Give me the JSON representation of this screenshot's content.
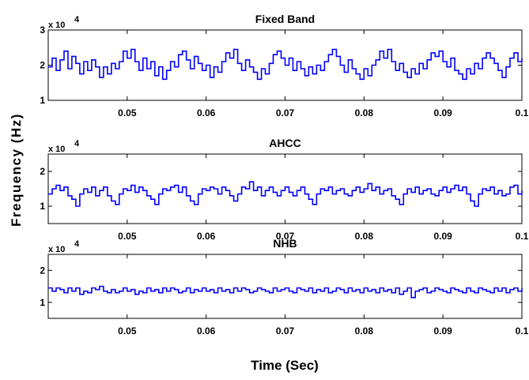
{
  "figure": {
    "xlabel": "Time (Sec)",
    "ylabel": "Frequency (Hz)",
    "line_color": "#0000ff"
  },
  "chart_data": [
    {
      "type": "line",
      "title": "Fixed Band",
      "exponent_base": "x 10",
      "exponent_power": "4",
      "xlim": [
        0.04,
        0.1
      ],
      "ylim": [
        1,
        3
      ],
      "xticks": [
        0.05,
        0.06,
        0.07,
        0.08,
        0.09,
        0.1
      ],
      "xtick_labels": [
        "0.05",
        "0.06",
        "0.07",
        "0.08",
        "0.09",
        "0.1"
      ],
      "yticks": [
        1,
        2,
        3
      ],
      "ytick_labels": [
        "1",
        "2",
        "3"
      ],
      "series": [
        {
          "x": [
            0.04,
            0.0405,
            0.041,
            0.0415,
            0.042,
            0.0425,
            0.043,
            0.0435,
            0.044,
            0.0445,
            0.045,
            0.0455,
            0.046,
            0.0465,
            0.047,
            0.0475,
            0.048,
            0.0485,
            0.049,
            0.0495,
            0.05,
            0.0505,
            0.051,
            0.0515,
            0.052,
            0.0525,
            0.053,
            0.0535,
            0.054,
            0.0545,
            0.055,
            0.0555,
            0.056,
            0.0565,
            0.057,
            0.0575,
            0.058,
            0.0585,
            0.059,
            0.0595,
            0.06,
            0.0605,
            0.061,
            0.0615,
            0.062,
            0.0625,
            0.063,
            0.0635,
            0.064,
            0.0645,
            0.065,
            0.0655,
            0.066,
            0.0665,
            0.067,
            0.0675,
            0.068,
            0.0685,
            0.069,
            0.0695,
            0.07,
            0.0705,
            0.071,
            0.0715,
            0.072,
            0.0725,
            0.073,
            0.0735,
            0.074,
            0.0745,
            0.075,
            0.0755,
            0.076,
            0.0765,
            0.077,
            0.0775,
            0.078,
            0.0785,
            0.079,
            0.0795,
            0.08,
            0.0805,
            0.081,
            0.0815,
            0.082,
            0.0825,
            0.083,
            0.0835,
            0.084,
            0.0845,
            0.085,
            0.0855,
            0.086,
            0.0865,
            0.087,
            0.0875,
            0.088,
            0.0885,
            0.089,
            0.0895,
            0.09,
            0.0905,
            0.091,
            0.0915,
            0.092,
            0.0925,
            0.093,
            0.0935,
            0.094,
            0.0945,
            0.095,
            0.0955,
            0.096,
            0.0965,
            0.097,
            0.0975,
            0.098,
            0.0985,
            0.099,
            0.0995,
            0.1
          ],
          "y": [
            1.95,
            2.2,
            1.85,
            2.15,
            2.4,
            1.9,
            2.25,
            2.05,
            1.75,
            2.1,
            1.85,
            2.15,
            1.95,
            1.65,
            1.95,
            1.75,
            2.05,
            1.9,
            2.1,
            2.4,
            2.2,
            2.45,
            2.1,
            1.85,
            2.2,
            1.9,
            2.1,
            1.7,
            1.95,
            1.6,
            1.85,
            2.1,
            1.95,
            2.3,
            2.4,
            2.15,
            1.9,
            2.25,
            2.05,
            1.85,
            2.0,
            1.65,
            1.95,
            1.8,
            2.1,
            2.35,
            2.2,
            2.45,
            2.05,
            1.85,
            2.15,
            1.95,
            1.8,
            1.6,
            1.9,
            1.75,
            2.05,
            2.3,
            2.4,
            2.2,
            2.0,
            2.2,
            1.85,
            2.1,
            1.9,
            1.7,
            1.95,
            1.75,
            2.0,
            1.85,
            2.1,
            2.3,
            2.45,
            2.25,
            2.0,
            1.8,
            2.15,
            1.9,
            1.75,
            1.6,
            1.9,
            1.7,
            2.0,
            2.15,
            2.4,
            2.2,
            2.45,
            2.1,
            1.85,
            2.05,
            1.8,
            1.65,
            1.9,
            1.75,
            2.05,
            1.9,
            2.15,
            2.35,
            2.25,
            2.4,
            2.1,
            1.95,
            2.2,
            1.85,
            1.75,
            1.6,
            1.9,
            1.75,
            2.05,
            1.9,
            2.2,
            2.35,
            2.2,
            2.05,
            1.85,
            1.65,
            1.95,
            2.2,
            2.35,
            2.1,
            2.2
          ]
        }
      ]
    },
    {
      "type": "line",
      "title": "AHCC",
      "exponent_base": "x 10",
      "exponent_power": "4",
      "xlim": [
        0.04,
        0.1
      ],
      "ylim": [
        0.5,
        2.5
      ],
      "xticks": [
        0.05,
        0.06,
        0.07,
        0.08,
        0.09,
        0.1
      ],
      "xtick_labels": [
        "0.05",
        "0.06",
        "0.07",
        "0.08",
        "0.09",
        "0.1"
      ],
      "yticks": [
        1,
        2
      ],
      "ytick_labels": [
        "1",
        "2"
      ],
      "series": [
        {
          "x": [
            0.04,
            0.0405,
            0.041,
            0.0415,
            0.042,
            0.0425,
            0.043,
            0.0435,
            0.044,
            0.0445,
            0.045,
            0.0455,
            0.046,
            0.0465,
            0.047,
            0.0475,
            0.048,
            0.0485,
            0.049,
            0.0495,
            0.05,
            0.0505,
            0.051,
            0.0515,
            0.052,
            0.0525,
            0.053,
            0.0535,
            0.054,
            0.0545,
            0.055,
            0.0555,
            0.056,
            0.0565,
            0.057,
            0.0575,
            0.058,
            0.0585,
            0.059,
            0.0595,
            0.06,
            0.0605,
            0.061,
            0.0615,
            0.062,
            0.0625,
            0.063,
            0.0635,
            0.064,
            0.0645,
            0.065,
            0.0655,
            0.066,
            0.0665,
            0.067,
            0.0675,
            0.068,
            0.0685,
            0.069,
            0.0695,
            0.07,
            0.0705,
            0.071,
            0.0715,
            0.072,
            0.0725,
            0.073,
            0.0735,
            0.074,
            0.0745,
            0.075,
            0.0755,
            0.076,
            0.0765,
            0.077,
            0.0775,
            0.078,
            0.0785,
            0.079,
            0.0795,
            0.08,
            0.0805,
            0.081,
            0.0815,
            0.082,
            0.0825,
            0.083,
            0.0835,
            0.084,
            0.0845,
            0.085,
            0.0855,
            0.086,
            0.0865,
            0.087,
            0.0875,
            0.088,
            0.0885,
            0.089,
            0.0895,
            0.09,
            0.0905,
            0.091,
            0.0915,
            0.092,
            0.0925,
            0.093,
            0.0935,
            0.094,
            0.0945,
            0.095,
            0.0955,
            0.096,
            0.0965,
            0.097,
            0.0975,
            0.098,
            0.0985,
            0.099,
            0.0995,
            0.1
          ],
          "y": [
            1.35,
            1.5,
            1.6,
            1.45,
            1.55,
            1.3,
            1.2,
            1.0,
            1.35,
            1.5,
            1.4,
            1.55,
            1.3,
            1.45,
            1.55,
            1.3,
            1.15,
            1.05,
            1.35,
            1.5,
            1.45,
            1.6,
            1.4,
            1.55,
            1.45,
            1.3,
            1.2,
            1.05,
            1.35,
            1.5,
            1.45,
            1.55,
            1.6,
            1.4,
            1.55,
            1.3,
            1.15,
            1.05,
            1.35,
            1.5,
            1.45,
            1.55,
            1.5,
            1.35,
            1.55,
            1.45,
            1.3,
            1.15,
            1.35,
            1.55,
            1.5,
            1.7,
            1.45,
            1.55,
            1.3,
            1.45,
            1.55,
            1.4,
            1.3,
            1.45,
            1.55,
            1.4,
            1.3,
            1.45,
            1.55,
            1.35,
            1.2,
            1.05,
            1.35,
            1.5,
            1.45,
            1.55,
            1.35,
            1.45,
            1.5,
            1.35,
            1.3,
            1.45,
            1.55,
            1.4,
            1.5,
            1.65,
            1.45,
            1.55,
            1.35,
            1.45,
            1.5,
            1.3,
            1.2,
            1.05,
            1.35,
            1.5,
            1.4,
            1.55,
            1.35,
            1.45,
            1.5,
            1.35,
            1.3,
            1.45,
            1.55,
            1.4,
            1.5,
            1.6,
            1.45,
            1.55,
            1.35,
            1.15,
            1.0,
            1.35,
            1.5,
            1.45,
            1.55,
            1.35,
            1.45,
            1.3,
            1.35,
            1.55,
            1.6,
            1.35,
            1.45
          ]
        }
      ]
    },
    {
      "type": "line",
      "title": "NHB",
      "exponent_base": "x 10",
      "exponent_power": "4",
      "xlim": [
        0.04,
        0.1
      ],
      "ylim": [
        0.5,
        2.5
      ],
      "xticks": [
        0.05,
        0.06,
        0.07,
        0.08,
        0.09,
        0.1
      ],
      "xtick_labels": [
        "0.05",
        "0.06",
        "0.07",
        "0.08",
        "0.09",
        "0.1"
      ],
      "yticks": [
        1,
        2
      ],
      "ytick_labels": [
        "1",
        "2"
      ],
      "series": [
        {
          "x": [
            0.04,
            0.0405,
            0.041,
            0.0415,
            0.042,
            0.0425,
            0.043,
            0.0435,
            0.044,
            0.0445,
            0.045,
            0.0455,
            0.046,
            0.0465,
            0.047,
            0.0475,
            0.048,
            0.0485,
            0.049,
            0.0495,
            0.05,
            0.0505,
            0.051,
            0.0515,
            0.052,
            0.0525,
            0.053,
            0.0535,
            0.054,
            0.0545,
            0.055,
            0.0555,
            0.056,
            0.0565,
            0.057,
            0.0575,
            0.058,
            0.0585,
            0.059,
            0.0595,
            0.06,
            0.0605,
            0.061,
            0.0615,
            0.062,
            0.0625,
            0.063,
            0.0635,
            0.064,
            0.0645,
            0.065,
            0.0655,
            0.066,
            0.0665,
            0.067,
            0.0675,
            0.068,
            0.0685,
            0.069,
            0.0695,
            0.07,
            0.0705,
            0.071,
            0.0715,
            0.072,
            0.0725,
            0.073,
            0.0735,
            0.074,
            0.0745,
            0.075,
            0.0755,
            0.076,
            0.0765,
            0.077,
            0.0775,
            0.078,
            0.0785,
            0.079,
            0.0795,
            0.08,
            0.0805,
            0.081,
            0.0815,
            0.082,
            0.0825,
            0.083,
            0.0835,
            0.084,
            0.0845,
            0.085,
            0.0855,
            0.086,
            0.0865,
            0.087,
            0.0875,
            0.088,
            0.0885,
            0.089,
            0.0895,
            0.09,
            0.0905,
            0.091,
            0.0915,
            0.092,
            0.0925,
            0.093,
            0.0935,
            0.094,
            0.0945,
            0.095,
            0.0955,
            0.096,
            0.0965,
            0.097,
            0.0975,
            0.098,
            0.0985,
            0.099,
            0.0995,
            0.1
          ],
          "y": [
            1.45,
            1.35,
            1.45,
            1.4,
            1.3,
            1.45,
            1.35,
            1.45,
            1.25,
            1.35,
            1.3,
            1.45,
            1.4,
            1.5,
            1.35,
            1.3,
            1.4,
            1.3,
            1.35,
            1.45,
            1.35,
            1.4,
            1.25,
            1.35,
            1.3,
            1.45,
            1.35,
            1.4,
            1.3,
            1.45,
            1.35,
            1.45,
            1.4,
            1.3,
            1.35,
            1.45,
            1.3,
            1.4,
            1.35,
            1.45,
            1.35,
            1.4,
            1.3,
            1.45,
            1.35,
            1.4,
            1.3,
            1.45,
            1.35,
            1.45,
            1.4,
            1.3,
            1.35,
            1.45,
            1.4,
            1.35,
            1.3,
            1.45,
            1.35,
            1.4,
            1.45,
            1.35,
            1.3,
            1.45,
            1.4,
            1.35,
            1.45,
            1.3,
            1.4,
            1.35,
            1.45,
            1.3,
            1.35,
            1.45,
            1.4,
            1.3,
            1.45,
            1.35,
            1.4,
            1.3,
            1.45,
            1.35,
            1.4,
            1.3,
            1.45,
            1.35,
            1.4,
            1.3,
            1.45,
            1.25,
            1.35,
            1.45,
            1.15,
            1.35,
            1.4,
            1.45,
            1.3,
            1.35,
            1.45,
            1.4,
            1.35,
            1.3,
            1.45,
            1.4,
            1.35,
            1.3,
            1.45,
            1.35,
            1.3,
            1.45,
            1.4,
            1.35,
            1.3,
            1.45,
            1.35,
            1.45,
            1.3,
            1.4,
            1.45,
            1.35,
            1.45
          ]
        }
      ]
    }
  ]
}
